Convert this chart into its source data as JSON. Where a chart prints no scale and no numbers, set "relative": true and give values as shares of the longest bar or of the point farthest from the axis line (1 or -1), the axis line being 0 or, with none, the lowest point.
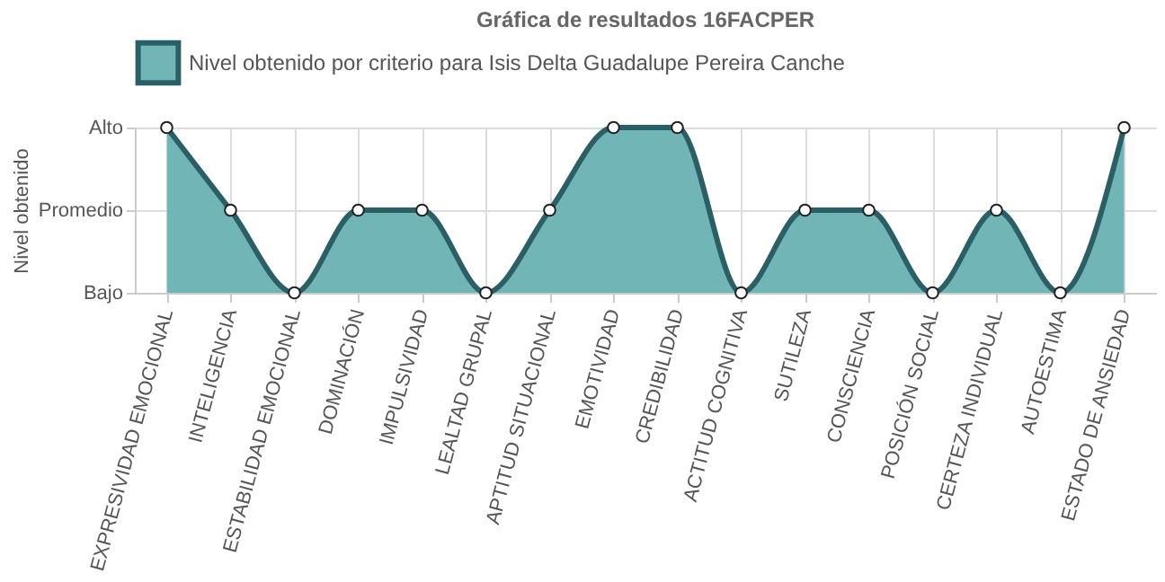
{
  "chart_data": {
    "type": "area",
    "title": "Gráfica de resultados 16FACPER",
    "ylabel": "Nivel obtenido",
    "categories": [
      "EXPRESIVIDAD EMOCIONAL",
      "INTELIGENCIA",
      "ESTABILIDAD EMOCIONAL",
      "DOMINACIÓN",
      "IMPULSIVIDAD",
      "LEALTAD GRUPAL",
      "APTITUD SITUACIONAL",
      "EMOTIVIDAD",
      "CREDIBILIDAD",
      "ACTITUD COGNITIVA",
      "SUTILEZA",
      "CONSCIENCIA",
      "POSICIÓN SOCIAL",
      "CERTEZA INDIVIDUAL",
      "AUTOESTIMA",
      "ESTADO DE ANSIEDAD"
    ],
    "series": [
      {
        "name": "Nivel obtenido por criterio para Isis Delta Guadalupe Pereira Canche",
        "color": "#72b5b7",
        "values": [
          1,
          0.5,
          0,
          0.5,
          0.5,
          0,
          0.5,
          1,
          1,
          0,
          0.5,
          0.5,
          0,
          0.5,
          0,
          1
        ]
      }
    ],
    "relative": true,
    "annotations": [
      "Alto",
      "Promedio",
      "Bajo"
    ],
    "grid": true,
    "legend": "top",
    "marker": "circle",
    "line_style": "solid"
  }
}
